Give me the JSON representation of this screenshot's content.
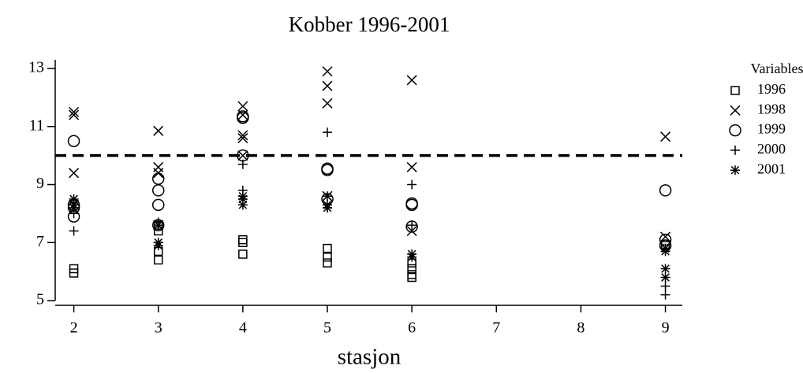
{
  "chart_data": {
    "type": "scatter",
    "title": "Kobber 1996-2001",
    "x_label": "stasjon",
    "legend_title": "Variables",
    "legend_position": "right",
    "xlim": [
      1.78,
      9.2
    ],
    "ylim": [
      5,
      13.3
    ],
    "xticks": [
      2,
      3,
      4,
      5,
      6,
      7,
      8,
      9
    ],
    "yticks": [
      5,
      7,
      9,
      11,
      13
    ],
    "reference_line": {
      "y": 10,
      "style": "dashed"
    },
    "series": [
      {
        "name": "1996",
        "marker": "square",
        "color": "#000000",
        "x": [
          2,
          2,
          3,
          3,
          3,
          3,
          4,
          4,
          4,
          5,
          5,
          5,
          6,
          6,
          6,
          6,
          9
        ],
        "values": [
          6.1,
          5.95,
          7.6,
          7.4,
          6.7,
          6.4,
          7.1,
          7.0,
          6.6,
          6.8,
          6.5,
          6.3,
          6.3,
          6.1,
          5.9,
          5.8,
          6.9
        ]
      },
      {
        "name": "1998",
        "marker": "x",
        "color": "#000000",
        "x": [
          2,
          2,
          2,
          2,
          3,
          3,
          3,
          3,
          4,
          4,
          4,
          4,
          4,
          5,
          5,
          5,
          5,
          6,
          6,
          6,
          9,
          9
        ],
        "values": [
          11.5,
          11.4,
          9.4,
          8.3,
          10.85,
          9.6,
          9.4,
          7.6,
          11.7,
          11.4,
          10.7,
          10.6,
          10.0,
          12.9,
          12.4,
          11.8,
          8.6,
          12.6,
          9.6,
          7.4,
          10.65,
          7.2
        ]
      },
      {
        "name": "1999",
        "marker": "circle",
        "color": "#000000",
        "x": [
          2,
          2,
          2,
          2,
          3,
          3,
          3,
          3,
          4,
          4,
          4,
          5,
          5,
          5,
          6,
          6,
          6,
          9,
          9,
          9
        ],
        "values": [
          10.5,
          8.3,
          8.2,
          7.9,
          9.2,
          8.8,
          8.3,
          7.6,
          11.35,
          11.3,
          10.0,
          9.55,
          9.5,
          8.5,
          8.35,
          8.3,
          7.55,
          8.8,
          7.1,
          6.9
        ]
      },
      {
        "name": "2000",
        "marker": "plus",
        "color": "#000000",
        "x": [
          2,
          2,
          3,
          3,
          4,
          4,
          5,
          5,
          6,
          6,
          9,
          9
        ],
        "values": [
          8.0,
          7.4,
          7.7,
          7.0,
          9.7,
          8.8,
          10.8,
          8.2,
          9.0,
          7.6,
          5.5,
          5.2
        ]
      },
      {
        "name": "2001",
        "marker": "star",
        "color": "#000000",
        "x": [
          2,
          2,
          2,
          3,
          3,
          3,
          4,
          4,
          4,
          5,
          5,
          5,
          6,
          6,
          9,
          9,
          9,
          9
        ],
        "values": [
          8.5,
          8.3,
          8.2,
          7.6,
          7.0,
          6.9,
          8.6,
          8.5,
          8.3,
          8.6,
          8.3,
          8.2,
          6.6,
          6.5,
          6.8,
          6.7,
          6.1,
          5.8
        ]
      }
    ]
  }
}
